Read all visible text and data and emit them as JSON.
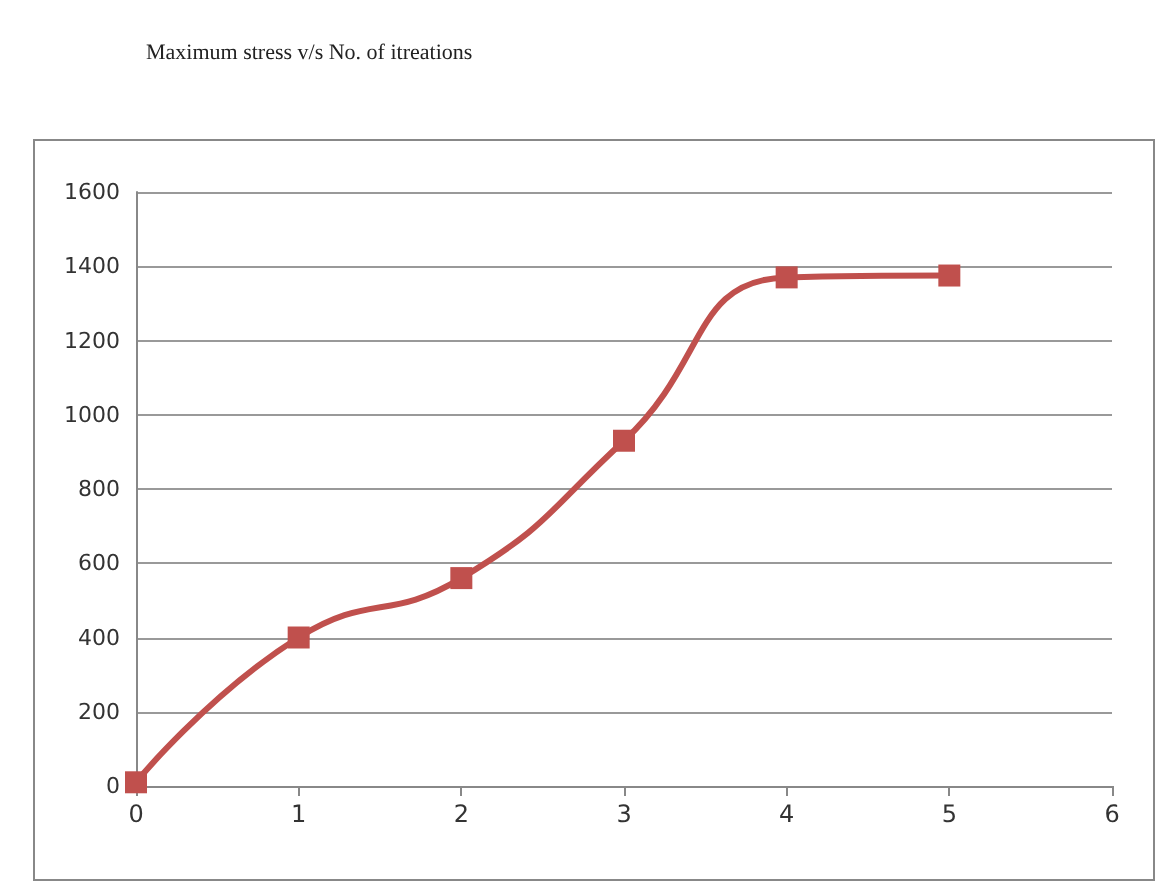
{
  "chart_data": {
    "type": "line",
    "title": "Maximum stress v/s No. of itreations",
    "x": [
      0,
      1,
      2,
      3,
      4,
      5
    ],
    "series": [
      {
        "color": "#c0504d",
        "values": [
          10,
          400,
          560,
          930,
          1370,
          1375
        ]
      }
    ],
    "xlim": [
      0,
      6
    ],
    "xticks": [
      0,
      1,
      2,
      3,
      4,
      5,
      6
    ],
    "ylim": [
      0,
      1600
    ],
    "yticks": [
      0,
      200,
      400,
      600,
      800,
      1000,
      1200,
      1400,
      1600
    ],
    "grid": "y",
    "marker": "square",
    "line_style": "solid"
  }
}
